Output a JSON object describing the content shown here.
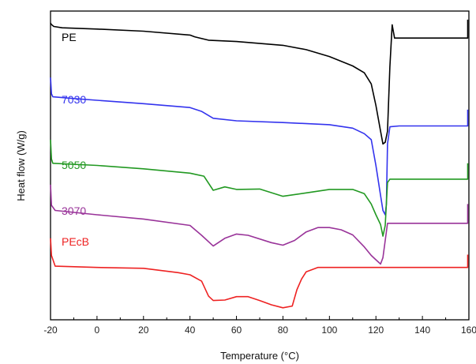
{
  "chart_data": {
    "type": "line",
    "xlabel": "Temperature (°C)",
    "ylabel": "Heat flow (W/g)",
    "xlim": [
      -20,
      160
    ],
    "x_ticks": [
      "-20",
      "0",
      "20",
      "40",
      "60",
      "80",
      "100",
      "120",
      "140",
      "160"
    ],
    "y_ticks_labeled": false,
    "grid": false,
    "series": [
      {
        "name": "PE",
        "color": "#000000",
        "points": [
          [
            -20,
            -2.8
          ],
          [
            -19.7,
            -3.1
          ],
          [
            -18.6,
            -3.6
          ],
          [
            -15,
            -3.9
          ],
          [
            0,
            -4.2
          ],
          [
            20,
            -4.7
          ],
          [
            40,
            -5.6
          ],
          [
            42,
            -6.0
          ],
          [
            48,
            -6.8
          ],
          [
            60,
            -7.1
          ],
          [
            80,
            -8.0
          ],
          [
            90,
            -9.0
          ],
          [
            100,
            -10.6
          ],
          [
            110,
            -12.8
          ],
          [
            115,
            -14.4
          ],
          [
            118,
            -17.0
          ],
          [
            120,
            -22.0
          ],
          [
            122,
            -28.0
          ],
          [
            123,
            -31.0
          ],
          [
            124,
            -30.6
          ],
          [
            125,
            -28.0
          ],
          [
            126,
            -13.0
          ],
          [
            127,
            -3.2
          ],
          [
            128,
            -6.3
          ],
          [
            140,
            -6.3
          ],
          [
            150,
            -6.3
          ],
          [
            159.5,
            -6.3
          ],
          [
            159.5,
            -2.0
          ]
        ]
      },
      {
        "name": "7030",
        "color": "#3333ee",
        "points": [
          [
            -20,
            -15.5
          ],
          [
            -19.6,
            -19.3
          ],
          [
            -19,
            -20.0
          ],
          [
            -10,
            -20.4
          ],
          [
            0,
            -20.8
          ],
          [
            20,
            -21.6
          ],
          [
            40,
            -22.5
          ],
          [
            45,
            -23.4
          ],
          [
            50,
            -25.0
          ],
          [
            60,
            -25.6
          ],
          [
            80,
            -26.0
          ],
          [
            100,
            -26.5
          ],
          [
            110,
            -27.3
          ],
          [
            115,
            -28.6
          ],
          [
            118,
            -30.0
          ],
          [
            120,
            -36.0
          ],
          [
            122,
            -43.0
          ],
          [
            123,
            -46.5
          ],
          [
            124,
            -47.5
          ],
          [
            124.5,
            -45.0
          ],
          [
            125,
            -31.0
          ],
          [
            126,
            -27.0
          ],
          [
            130,
            -26.8
          ],
          [
            140,
            -26.8
          ],
          [
            150,
            -26.8
          ],
          [
            159.5,
            -26.8
          ],
          [
            159.5,
            -23.0
          ]
        ]
      },
      {
        "name": "5050",
        "color": "#229922",
        "points": [
          [
            -20,
            -30.0
          ],
          [
            -19.6,
            -34.5
          ],
          [
            -19,
            -35.5
          ],
          [
            0,
            -36.0
          ],
          [
            20,
            -36.8
          ],
          [
            40,
            -37.8
          ],
          [
            46,
            -38.5
          ],
          [
            50,
            -41.8
          ],
          [
            55,
            -41.0
          ],
          [
            60,
            -41.6
          ],
          [
            70,
            -41.5
          ],
          [
            80,
            -43.2
          ],
          [
            90,
            -42.4
          ],
          [
            100,
            -41.6
          ],
          [
            110,
            -41.6
          ],
          [
            115,
            -42.6
          ],
          [
            118,
            -45.0
          ],
          [
            120,
            -47.5
          ],
          [
            122,
            -49.8
          ],
          [
            123,
            -52.5
          ],
          [
            124,
            -50.0
          ],
          [
            125,
            -40.0
          ],
          [
            126,
            -39.2
          ],
          [
            130,
            -39.2
          ],
          [
            140,
            -39.2
          ],
          [
            150,
            -39.2
          ],
          [
            159.5,
            -39.2
          ],
          [
            159.5,
            -35.5
          ]
        ]
      },
      {
        "name": "3070",
        "color": "#993399",
        "points": [
          [
            -20,
            -40.5
          ],
          [
            -19.6,
            -45.3
          ],
          [
            -18,
            -46.5
          ],
          [
            0,
            -47.5
          ],
          [
            20,
            -48.5
          ],
          [
            40,
            -50.0
          ],
          [
            45,
            -52.3
          ],
          [
            50,
            -54.8
          ],
          [
            55,
            -53.0
          ],
          [
            60,
            -52.0
          ],
          [
            65,
            -52.3
          ],
          [
            75,
            -54.0
          ],
          [
            80,
            -54.6
          ],
          [
            85,
            -53.5
          ],
          [
            90,
            -51.5
          ],
          [
            95,
            -50.5
          ],
          [
            100,
            -50.5
          ],
          [
            105,
            -51.0
          ],
          [
            110,
            -52.2
          ],
          [
            115,
            -55.0
          ],
          [
            118,
            -57.0
          ],
          [
            120,
            -58.0
          ],
          [
            122,
            -59.0
          ],
          [
            123,
            -57.5
          ],
          [
            125,
            -49.5
          ],
          [
            130,
            -49.5
          ],
          [
            140,
            -49.5
          ],
          [
            150,
            -49.5
          ],
          [
            159.5,
            -49.5
          ],
          [
            159.5,
            -45.0
          ]
        ]
      },
      {
        "name": "PEcB",
        "color": "#ee2222",
        "points": [
          [
            -20,
            -53.0
          ],
          [
            -19.6,
            -57.0
          ],
          [
            -18,
            -59.5
          ],
          [
            0,
            -59.8
          ],
          [
            20,
            -60.0
          ],
          [
            35,
            -61.0
          ],
          [
            40,
            -61.5
          ],
          [
            45,
            -63.0
          ],
          [
            48,
            -66.5
          ],
          [
            50,
            -67.5
          ],
          [
            55,
            -67.4
          ],
          [
            60,
            -66.6
          ],
          [
            65,
            -66.6
          ],
          [
            70,
            -67.5
          ],
          [
            75,
            -68.5
          ],
          [
            80,
            -69.2
          ],
          [
            84,
            -68.8
          ],
          [
            86,
            -65.0
          ],
          [
            88,
            -62.5
          ],
          [
            90,
            -60.8
          ],
          [
            95,
            -59.8
          ],
          [
            100,
            -59.8
          ],
          [
            120,
            -59.8
          ],
          [
            140,
            -59.8
          ],
          [
            159.5,
            -59.8
          ],
          [
            159.5,
            -56.8
          ]
        ]
      }
    ]
  }
}
